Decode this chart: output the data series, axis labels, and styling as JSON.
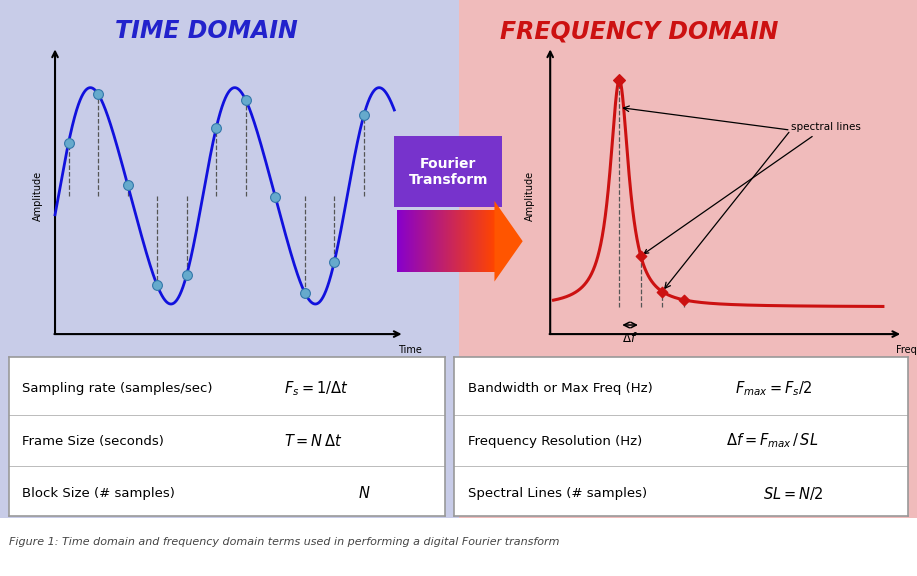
{
  "bg_left": "#c8cce8",
  "bg_right": "#f0bbbb",
  "bg_white": "#ffffff",
  "title_left": "TIME DOMAIN",
  "title_right": "FREQUENCY DOMAIN",
  "title_left_color": "#2222cc",
  "title_right_color": "#cc1111",
  "wave_color": "#1111dd",
  "sample_color": "#66aacc",
  "freq_curve_color": "#cc1111",
  "dashed_color": "#555555",
  "caption": "Figure 1: Time domain and frequency domain terms used in performing a digital Fourier transform",
  "left_table": [
    [
      "Sampling rate (samples/sec)",
      "$F_s = 1/\\Delta t$"
    ],
    [
      "Frame Size (seconds)",
      "$T = N\\,\\Delta t$"
    ],
    [
      "Block Size (# samples)",
      "$N$"
    ]
  ],
  "right_table": [
    [
      "Bandwidth or Max Freq (Hz)",
      "$F_{max} = F_s/2$"
    ],
    [
      "Frequency Resolution (Hz)",
      "$\\Delta f = F_{max}\\,/\\,SL$"
    ],
    [
      "Spectral Lines (# samples)",
      "$SL = N/2$"
    ]
  ]
}
